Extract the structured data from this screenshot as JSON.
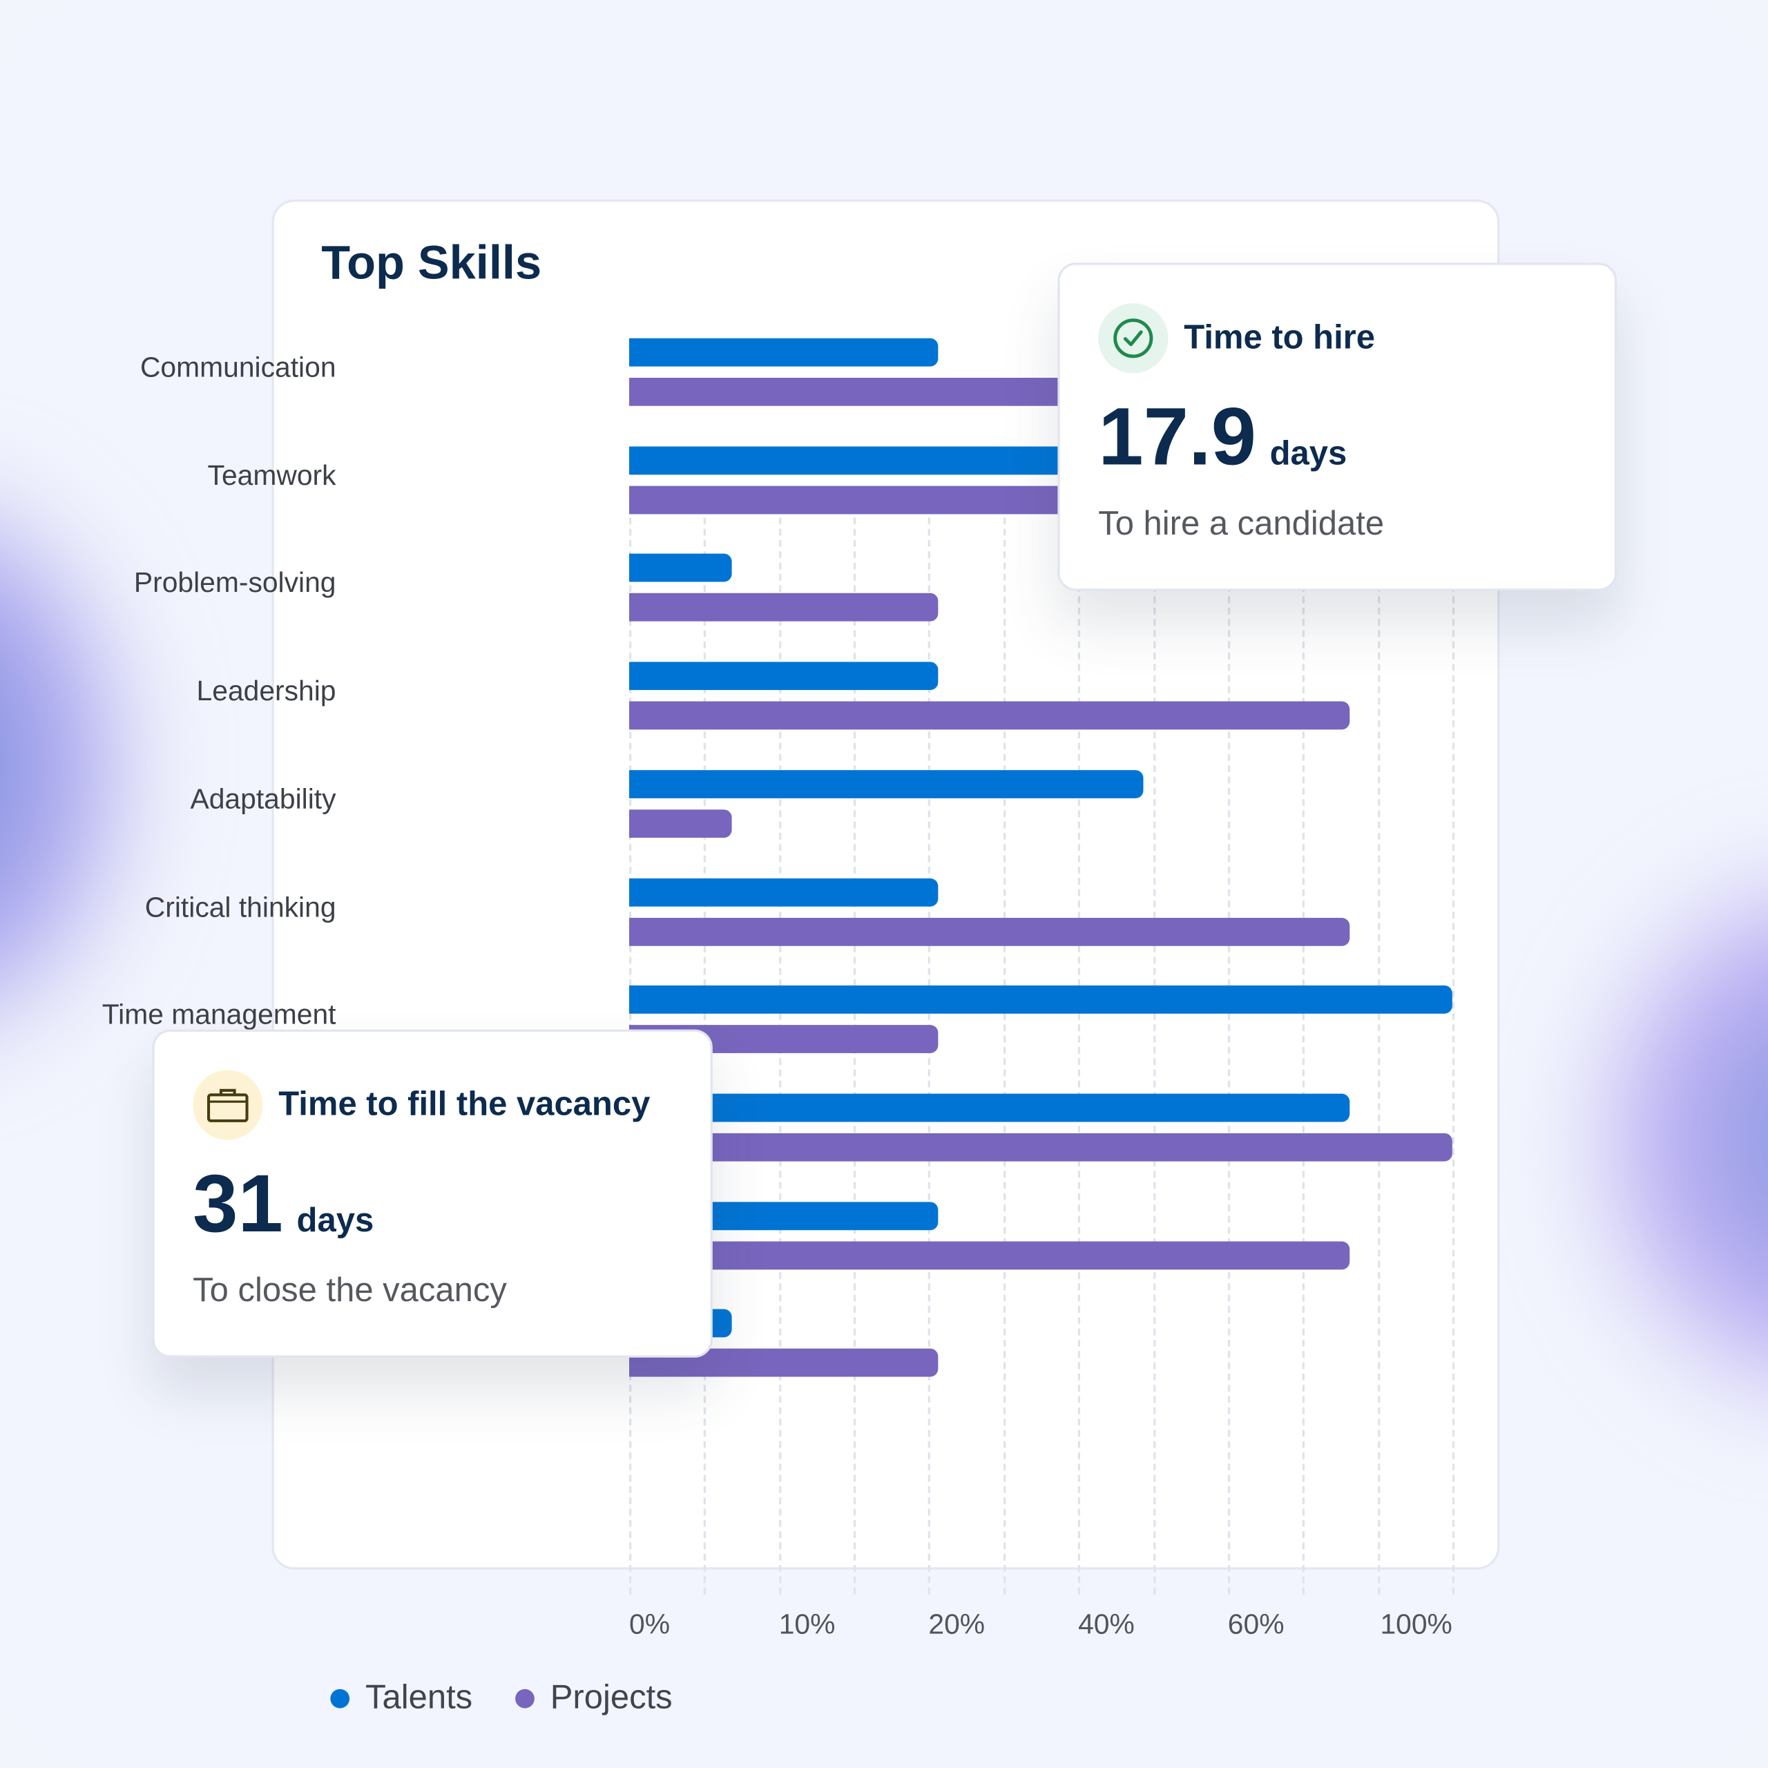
{
  "chart_data": {
    "type": "bar",
    "orientation": "horizontal",
    "title": "Top Skills",
    "categories": [
      "Communication",
      "Teamwork",
      "Problem-solving",
      "Leadership",
      "Adaptability",
      "Critical thinking",
      "Time management",
      "",
      "",
      ""
    ],
    "series": [
      {
        "name": "Talents",
        "color": "#0074d4",
        "values": [
          37.5,
          88,
          12.5,
          37.5,
          62.5,
          37.5,
          100,
          87.5,
          37.5,
          12.5
        ]
      },
      {
        "name": "Projects",
        "color": "#7865bd",
        "values": [
          88,
          88,
          37.5,
          87.5,
          12.5,
          87.5,
          37.5,
          100,
          87.5,
          37.5
        ]
      }
    ],
    "x_tick_labels": [
      "0%",
      "10%",
      "20%",
      "40%",
      "60%",
      "100%"
    ],
    "xlim": [
      0,
      100
    ],
    "grid": true,
    "legend": "bottom-left"
  },
  "cards": {
    "hire": {
      "icon": "check-circle-icon",
      "title": "Time to hire",
      "value": "17.9",
      "unit": "days",
      "subtitle": "To hire a candidate"
    },
    "vacancy": {
      "icon": "briefcase-icon",
      "title": "Time to fill the vacancy",
      "value": "31",
      "unit": "days",
      "subtitle": "To close the vacancy"
    }
  }
}
